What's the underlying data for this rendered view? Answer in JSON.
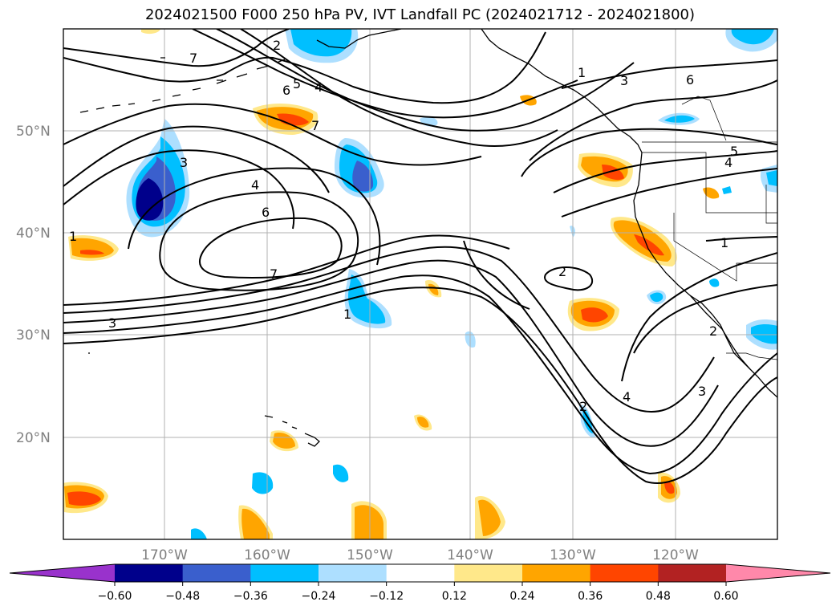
{
  "title": "2024021500 F000 250 hPa PV, IVT Landfall PC (2024021712 - 2024021800)",
  "lat_labels": [
    "50°N",
    "40°N",
    "30°N",
    "20°N"
  ],
  "lon_labels": [
    "170°W",
    "160°W",
    "150°W",
    "140°W",
    "130°W",
    "120°W"
  ],
  "colorbar": {
    "ticks": [
      "−0.60",
      "−0.48",
      "−0.36",
      "−0.24",
      "−0.12",
      "0.12",
      "0.24",
      "0.36",
      "0.48",
      "0.60"
    ],
    "colors": [
      "#9932CC",
      "#00008B",
      "#3A5FCD",
      "#00BFFF",
      "#ADDFFF",
      "#FFFFFF",
      "#FFE88A",
      "#FFA500",
      "#FF4500",
      "#B22222",
      "#FF88AA"
    ]
  },
  "contour_labels": [
    "7",
    "7",
    "6",
    "5",
    "4",
    "3",
    "4",
    "6",
    "7",
    "3",
    "1",
    "2",
    "1",
    "3",
    "6",
    "5",
    "4",
    "1",
    "2",
    "2",
    "4",
    "3",
    "2",
    "1"
  ]
}
